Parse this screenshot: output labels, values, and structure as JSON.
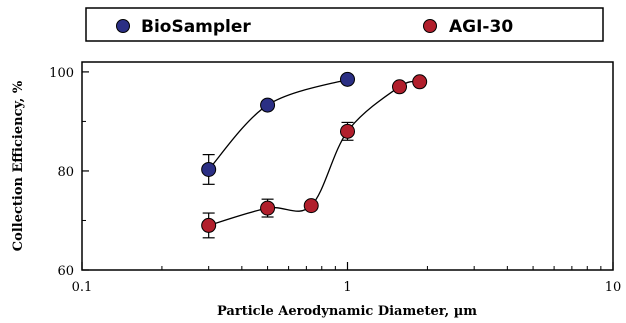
{
  "chart_data": {
    "type": "scatter",
    "title": "",
    "xlabel": "Particle Aerodynamic Diameter, µm",
    "ylabel": "Collection Efficiency, %",
    "x_scale": "log",
    "xlim": [
      0.1,
      10
    ],
    "ylim": [
      60,
      102
    ],
    "x_ticks": [
      0.1,
      1,
      10
    ],
    "x_tick_labels": [
      "0.1",
      "1",
      "10"
    ],
    "y_ticks": [
      60,
      80,
      100
    ],
    "y_tick_labels": [
      "60",
      "80",
      "100"
    ],
    "grid": false,
    "legend_position": "top",
    "series": [
      {
        "name": "BioSampler",
        "color": "#2b2f84",
        "x": [
          0.3,
          0.5,
          1.0
        ],
        "y": [
          80.3,
          93.3,
          98.5
        ],
        "err": [
          3.0,
          0.7,
          0.5
        ]
      },
      {
        "name": "AGI-30",
        "color": "#b11f2c",
        "x": [
          0.3,
          0.5,
          0.73,
          1.0,
          1.57,
          1.87
        ],
        "y": [
          69.0,
          72.5,
          73.0,
          88.0,
          97.0,
          98.0
        ],
        "err": [
          2.5,
          1.8,
          0.8,
          1.8,
          0.8,
          0.7
        ]
      }
    ]
  }
}
